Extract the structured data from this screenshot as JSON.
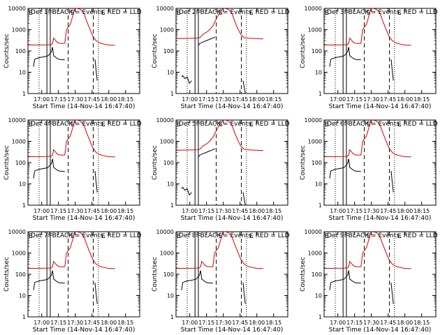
{
  "page": {
    "background": "#ffffff"
  },
  "colors": {
    "events": "#000000",
    "lld": "#d00000",
    "axes": "#000000"
  },
  "chart_data": [
    {
      "type": "line",
      "title": "Det 1f BLACK = Events, RED = LLD",
      "xlabel": "Start Time (14-Nov-14 16:47:40)",
      "ylabel": "Counts/sec",
      "yscale": "log",
      "ylim": [
        1,
        10000
      ],
      "xlim_minutes_after_16_47_40": [
        0,
        100
      ],
      "xticks": [
        "17:00",
        "17:15",
        "17:30",
        "17:45",
        "18:00",
        "18:15"
      ],
      "markers": [
        "E",
        "F",
        "S",
        "E"
      ],
      "series": [
        {
          "color": "#d00000",
          "x": [
            0,
            18,
            21,
            22,
            23,
            26,
            28,
            31,
            33,
            34.5,
            38,
            42,
            44,
            47,
            50,
            52,
            55,
            58,
            61,
            64,
            68,
            72,
            78
          ],
          "y": [
            190,
            195,
            200,
            230,
            400,
            260,
            230,
            225,
            230,
            1000,
            1800,
            10000,
            10000,
            9000,
            6000,
            3000,
            1200,
            500,
            300,
            240,
            210,
            190,
            185
          ]
        },
        {
          "color": "#000000",
          "x": [
            5,
            6,
            8,
            11,
            13,
            16,
            18,
            21,
            22,
            23,
            26,
            28,
            33
          ],
          "y": [
            18,
            40,
            45,
            50,
            52,
            55,
            60,
            90,
            150,
            60,
            45,
            40,
            38
          ]
        },
        {
          "color": "#000000",
          "x": [
            60,
            61,
            62
          ],
          "y": [
            40,
            12,
            4
          ]
        }
      ]
    },
    {
      "type": "line",
      "title": "Det 2f BLACK = Events, RED = LLD",
      "xlabel": "Start Time (14-Nov-14 16:47:40)",
      "ylabel": "Counts/sec",
      "yscale": "log",
      "ylim": [
        1,
        10000
      ],
      "xlim_minutes_after_16_47_40": [
        0,
        100
      ],
      "xticks": [
        "17:00",
        "17:15",
        "17:30",
        "17:45",
        "18:00",
        "18:15"
      ],
      "markers": [
        "E",
        "F",
        "S",
        "E"
      ],
      "series": [
        {
          "color": "#d00000",
          "x": [
            0,
            10,
            20,
            22,
            24,
            28,
            30,
            33,
            35,
            38,
            42,
            44,
            47,
            50,
            52,
            55,
            58,
            61,
            64,
            68,
            72,
            78
          ],
          "y": [
            380,
            390,
            400,
            450,
            600,
            800,
            1000,
            1500,
            2500,
            5000,
            10000,
            10000,
            9000,
            6000,
            3000,
            1200,
            600,
            420,
            400,
            390,
            380,
            370
          ]
        },
        {
          "color": "#000000",
          "x": [
            5,
            6,
            8,
            10,
            12,
            14
          ],
          "y": [
            6,
            7,
            5,
            6,
            3,
            4
          ]
        },
        {
          "color": "#000000",
          "x": [
            20,
            21,
            24,
            27,
            30,
            33,
            35
          ],
          "y": [
            180,
            220,
            260,
            300,
            350,
            400,
            450
          ]
        },
        {
          "color": "#000000",
          "x": [
            60,
            61,
            62
          ],
          "y": [
            4,
            2,
            1
          ]
        }
      ]
    },
    {
      "type": "line",
      "title": "Det 3f BLACK = Events, RED = LLD",
      "xlabel": "Start Time (14-Nov-14 16:47:40)",
      "ylabel": "Counts/sec",
      "yscale": "log",
      "ylim": [
        1,
        10000
      ],
      "xlim_minutes_after_16_47_40": [
        0,
        100
      ],
      "xticks": [
        "17:00",
        "17:15",
        "17:30",
        "17:45",
        "18:00",
        "18:15"
      ],
      "markers": [
        "E",
        "F",
        "S",
        "E"
      ],
      "series": [
        {
          "color": "#d00000",
          "x": [
            0,
            18,
            21,
            22,
            23,
            26,
            28,
            31,
            33,
            34.5,
            38,
            42,
            44,
            47,
            50,
            52,
            55,
            58,
            61,
            64,
            68,
            72,
            78
          ],
          "y": [
            190,
            195,
            200,
            230,
            400,
            260,
            230,
            225,
            230,
            1000,
            1800,
            10000,
            10000,
            9000,
            6000,
            3000,
            1200,
            500,
            300,
            240,
            210,
            190,
            185
          ]
        },
        {
          "color": "#000000",
          "x": [
            5,
            6,
            8,
            11,
            13,
            16,
            18,
            21,
            22,
            23,
            26,
            28,
            33
          ],
          "y": [
            18,
            40,
            45,
            50,
            52,
            55,
            60,
            90,
            150,
            60,
            45,
            40,
            38
          ]
        },
        {
          "color": "#000000",
          "x": [
            60,
            61,
            62
          ],
          "y": [
            40,
            12,
            4
          ]
        }
      ]
    },
    {
      "type": "line",
      "title": "Det 4f BLACK = Events, RED = LLD",
      "xlabel": "Start Time (14-Nov-14 16:47:40)",
      "ylabel": "Counts/sec",
      "yscale": "log",
      "ylim": [
        1,
        10000
      ],
      "xlim_minutes_after_16_47_40": [
        0,
        100
      ],
      "xticks": [
        "17:00",
        "17:15",
        "17:30",
        "17:45",
        "18:00",
        "18:15"
      ],
      "markers": [
        "E",
        "F",
        "S",
        "E"
      ],
      "series": [
        {
          "color": "#d00000",
          "x": [
            0,
            18,
            21,
            22,
            23,
            26,
            28,
            31,
            33,
            34.5,
            38,
            42,
            44,
            47,
            50,
            52,
            55,
            58,
            61,
            64,
            68,
            72,
            78
          ],
          "y": [
            190,
            195,
            200,
            230,
            400,
            260,
            230,
            225,
            230,
            1000,
            1800,
            10000,
            10000,
            9000,
            6000,
            3000,
            1200,
            500,
            300,
            240,
            210,
            190,
            185
          ]
        },
        {
          "color": "#000000",
          "x": [
            5,
            6,
            8,
            11,
            13,
            16,
            18,
            21,
            22,
            23,
            26,
            28,
            33
          ],
          "y": [
            18,
            40,
            45,
            50,
            52,
            55,
            60,
            90,
            150,
            60,
            45,
            40,
            38
          ]
        },
        {
          "color": "#000000",
          "x": [
            60,
            61,
            62
          ],
          "y": [
            40,
            12,
            4
          ]
        }
      ]
    },
    {
      "type": "line",
      "title": "Det 5f BLACK = Events, RED = LLD",
      "xlabel": "Start Time (14-Nov-14 16:47:40)",
      "ylabel": "Counts/sec",
      "yscale": "log",
      "ylim": [
        1,
        10000
      ],
      "xlim_minutes_after_16_47_40": [
        0,
        100
      ],
      "xticks": [
        "17:00",
        "17:15",
        "17:30",
        "17:45",
        "18:00",
        "18:15"
      ],
      "markers": [
        "E",
        "F",
        "S",
        "E"
      ],
      "series": [
        {
          "color": "#d00000",
          "x": [
            0,
            10,
            20,
            22,
            24,
            28,
            30,
            33,
            35,
            38,
            42,
            44,
            47,
            50,
            52,
            55,
            58,
            61,
            64,
            68,
            72,
            78
          ],
          "y": [
            380,
            390,
            400,
            450,
            600,
            800,
            1000,
            1500,
            2500,
            5000,
            10000,
            10000,
            9000,
            6000,
            3000,
            1200,
            600,
            420,
            400,
            390,
            380,
            370
          ]
        },
        {
          "color": "#000000",
          "x": [
            5,
            6,
            8,
            10,
            12,
            14
          ],
          "y": [
            6,
            7,
            5,
            6,
            3,
            4
          ]
        },
        {
          "color": "#000000",
          "x": [
            20,
            21,
            24,
            27,
            30,
            33,
            35
          ],
          "y": [
            180,
            220,
            260,
            300,
            350,
            400,
            450
          ]
        },
        {
          "color": "#000000",
          "x": [
            60,
            61,
            62
          ],
          "y": [
            4,
            2,
            1
          ]
        }
      ]
    },
    {
      "type": "line",
      "title": "Det 6f BLACK = Events, RED = LLD",
      "xlabel": "Start Time (14-Nov-14 16:47:40)",
      "ylabel": "Counts/sec",
      "yscale": "log",
      "ylim": [
        1,
        10000
      ],
      "xlim_minutes_after_16_47_40": [
        0,
        100
      ],
      "xticks": [
        "17:00",
        "17:15",
        "17:30",
        "17:45",
        "18:00",
        "18:15"
      ],
      "markers": [
        "E",
        "F",
        "S",
        "E"
      ],
      "series": [
        {
          "color": "#d00000",
          "x": [
            0,
            18,
            21,
            22,
            23,
            26,
            28,
            31,
            33,
            34.5,
            38,
            42,
            44,
            47,
            50,
            52,
            55,
            58,
            61,
            64,
            68,
            72,
            78
          ],
          "y": [
            190,
            195,
            200,
            230,
            400,
            260,
            230,
            225,
            230,
            1000,
            1800,
            10000,
            10000,
            9000,
            6000,
            3000,
            1200,
            500,
            300,
            240,
            210,
            190,
            185
          ]
        },
        {
          "color": "#000000",
          "x": [
            5,
            6,
            8,
            11,
            13,
            16,
            18,
            21,
            22,
            23,
            26,
            28,
            33
          ],
          "y": [
            18,
            40,
            45,
            50,
            52,
            55,
            60,
            90,
            150,
            60,
            45,
            40,
            38
          ]
        },
        {
          "color": "#000000",
          "x": [
            60,
            61,
            62
          ],
          "y": [
            40,
            12,
            4
          ]
        }
      ]
    },
    {
      "type": "line",
      "title": "Det 7f BLACK = Events, RED = LLD",
      "xlabel": "Start Time (14-Nov-14 16:47:40)",
      "ylabel": "Counts/sec",
      "yscale": "log",
      "ylim": [
        1,
        10000
      ],
      "xlim_minutes_after_16_47_40": [
        0,
        100
      ],
      "xticks": [
        "17:00",
        "17:15",
        "17:30",
        "17:45",
        "18:00",
        "18:15"
      ],
      "markers": [
        "E",
        "F",
        "S",
        "E"
      ],
      "series": [
        {
          "color": "#d00000",
          "x": [
            0,
            18,
            21,
            22,
            23,
            26,
            28,
            31,
            33,
            34.5,
            38,
            42,
            44,
            47,
            50,
            52,
            55,
            58,
            61,
            64,
            68,
            72,
            78
          ],
          "y": [
            190,
            195,
            200,
            230,
            400,
            260,
            230,
            225,
            230,
            1000,
            1800,
            10000,
            10000,
            9000,
            6000,
            3000,
            1200,
            500,
            300,
            240,
            210,
            190,
            185
          ]
        },
        {
          "color": "#000000",
          "x": [
            5,
            6,
            8,
            11,
            13,
            16,
            18,
            21,
            22,
            23,
            26,
            28,
            33
          ],
          "y": [
            18,
            40,
            45,
            50,
            52,
            55,
            60,
            90,
            150,
            60,
            45,
            40,
            38
          ]
        },
        {
          "color": "#000000",
          "x": [
            60,
            61,
            62
          ],
          "y": [
            40,
            12,
            4
          ]
        }
      ]
    },
    {
      "type": "line",
      "title": "Det 8f BLACK = Events, RED = LLD",
      "xlabel": "Start Time (14-Nov-14 16:47:40)",
      "ylabel": "Counts/sec",
      "yscale": "log",
      "ylim": [
        1,
        10000
      ],
      "xlim_minutes_after_16_47_40": [
        0,
        100
      ],
      "xticks": [
        "17:00",
        "17:15",
        "17:30",
        "17:45",
        "18:00",
        "18:15"
      ],
      "markers": [
        "E",
        "F",
        "S",
        "E"
      ],
      "series": [
        {
          "color": "#d00000",
          "x": [
            0,
            18,
            21,
            22,
            23,
            26,
            28,
            31,
            33,
            34.5,
            38,
            42,
            44,
            47,
            50,
            52,
            55,
            58,
            61,
            64,
            68,
            72,
            78
          ],
          "y": [
            190,
            195,
            200,
            230,
            400,
            260,
            230,
            225,
            230,
            1000,
            1800,
            10000,
            10000,
            9000,
            6000,
            3000,
            1200,
            500,
            300,
            240,
            210,
            190,
            185
          ]
        },
        {
          "color": "#000000",
          "x": [
            5,
            6,
            8,
            11,
            13,
            16,
            18,
            21,
            22,
            23,
            26,
            28,
            33
          ],
          "y": [
            18,
            40,
            45,
            50,
            52,
            55,
            60,
            90,
            150,
            60,
            45,
            40,
            38
          ]
        },
        {
          "color": "#000000",
          "x": [
            60,
            61,
            62
          ],
          "y": [
            40,
            12,
            4
          ]
        }
      ]
    },
    {
      "type": "line",
      "title": "Det 9f BLACK = Events, RED = LLD",
      "xlabel": "Start Time (14-Nov-14 16:47:40)",
      "ylabel": "Counts/sec",
      "yscale": "log",
      "ylim": [
        1,
        10000
      ],
      "xlim_minutes_after_16_47_40": [
        0,
        100
      ],
      "xticks": [
        "17:00",
        "17:15",
        "17:30",
        "17:45",
        "18:00",
        "18:15"
      ],
      "markers": [
        "E",
        "F",
        "S",
        "E"
      ],
      "series": [
        {
          "color": "#d00000",
          "x": [
            0,
            18,
            21,
            22,
            23,
            26,
            28,
            31,
            33,
            34.5,
            38,
            42,
            44,
            47,
            50,
            52,
            55,
            58,
            61,
            64,
            68,
            72,
            78
          ],
          "y": [
            190,
            195,
            200,
            230,
            400,
            260,
            230,
            225,
            230,
            1000,
            1800,
            10000,
            10000,
            9000,
            6000,
            3000,
            1200,
            500,
            300,
            240,
            210,
            190,
            185
          ]
        },
        {
          "color": "#000000",
          "x": [
            5,
            6,
            8,
            11,
            13,
            16,
            18,
            21,
            22,
            23,
            26,
            28,
            33
          ],
          "y": [
            18,
            40,
            45,
            50,
            52,
            55,
            60,
            90,
            150,
            60,
            45,
            40,
            38
          ]
        },
        {
          "color": "#000000",
          "x": [
            60,
            61,
            62
          ],
          "y": [
            40,
            12,
            4
          ]
        }
      ]
    }
  ]
}
